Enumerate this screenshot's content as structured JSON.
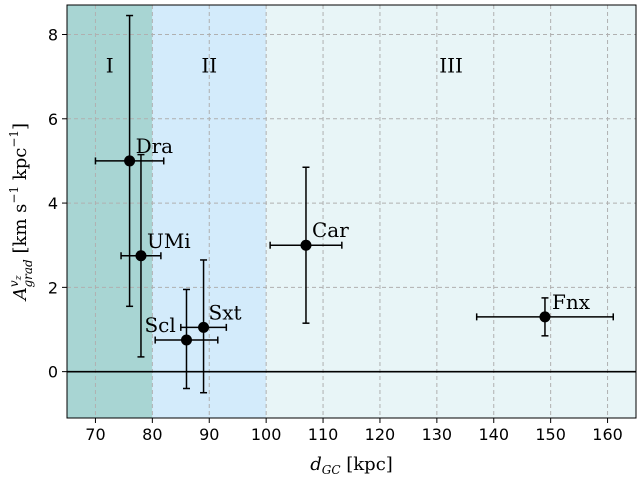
{
  "chart_data": {
    "type": "scatter",
    "xlabel_main": "d",
    "xlabel_sub": "GC",
    "xlabel_unit": " [kpc]",
    "ylabel_main": "A",
    "ylabel_sub": "grad",
    "ylabel_sup": "v",
    "ylabel_sup_sub": "z",
    "ylabel_unit_pre": " [km s",
    "ylabel_unit_exp1": "−1",
    "ylabel_unit_mid": " kpc",
    "ylabel_unit_exp2": "−1",
    "ylabel_unit_post": "]",
    "xlim": [
      65,
      165
    ],
    "ylim": [
      -1.1,
      8.7
    ],
    "xticks": [
      70,
      80,
      90,
      100,
      110,
      120,
      130,
      140,
      150,
      160
    ],
    "yticks": [
      0,
      2,
      4,
      6,
      8
    ],
    "grid": true,
    "zero_line": 0,
    "regions": [
      {
        "label": "I",
        "x0": 65,
        "x1": 80,
        "color": "#a8d5d3",
        "label_x": 72.5,
        "label_y": 7.1
      },
      {
        "label": "II",
        "x0": 80,
        "x1": 100,
        "color": "#d3ebfb",
        "label_x": 90,
        "label_y": 7.1
      },
      {
        "label": "III",
        "x0": 100,
        "x1": 165,
        "color": "#e8f5f7",
        "label_x": 132.5,
        "label_y": 7.1
      }
    ],
    "points": [
      {
        "name": "Dra",
        "x": 76,
        "y": 5.0,
        "xerr": 6,
        "yerr_lo": 3.45,
        "yerr_hi": 3.45
      },
      {
        "name": "UMi",
        "x": 78,
        "y": 2.75,
        "xerr": 3.5,
        "yerr_lo": 2.4,
        "yerr_hi": 2.4
      },
      {
        "name": "Scl",
        "x": 86,
        "y": 0.75,
        "xerr": 5.5,
        "yerr_lo": 1.15,
        "yerr_hi": 1.2
      },
      {
        "name": "Sxt",
        "x": 89,
        "y": 1.05,
        "xerr": 4,
        "yerr_lo": 1.55,
        "yerr_hi": 1.6
      },
      {
        "name": "Car",
        "x": 107,
        "y": 3.0,
        "xerr": 6.3,
        "yerr_lo": 1.85,
        "yerr_hi": 1.85
      },
      {
        "name": "Fnx",
        "x": 149,
        "y": 1.3,
        "xerr": 12,
        "yerr_lo": 0.45,
        "yerr_hi": 0.45
      }
    ]
  }
}
